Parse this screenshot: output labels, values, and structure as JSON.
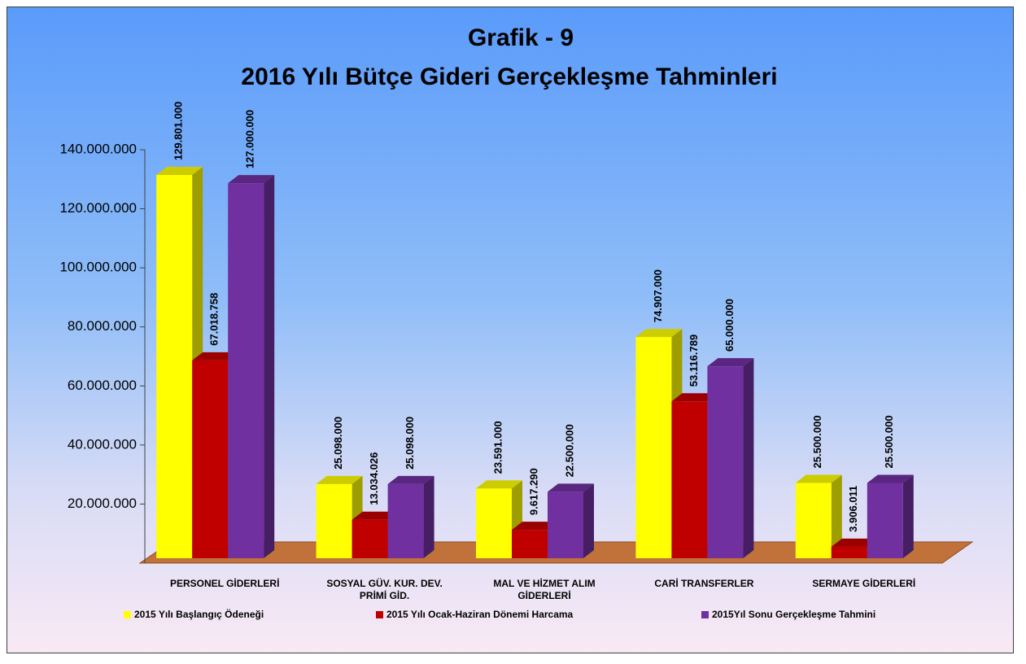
{
  "chart_data": {
    "type": "bar3d",
    "title": "Grafik - 9",
    "subtitle": "2016 Yılı Bütçe Gideri Gerçekleşme Tahminleri",
    "categories": [
      "PERSONEL GİDERLERİ",
      "SOSYAL GÜV. KUR. DEV. PRİMİ GİD.",
      "MAL VE HİZMET ALIM GİDERLERİ",
      "CARİ TRANSFERLER",
      "SERMAYE GİDERLERİ"
    ],
    "series": [
      {
        "name": "2015 Yılı Başlangıç Ödeneği",
        "color": "#ffff00",
        "values": [
          129801000,
          25098000,
          23591000,
          74907000,
          25500000
        ],
        "value_labels": [
          "129.801.000",
          "25.098.000",
          "23.591.000",
          "74.907.000",
          "25.500.000"
        ]
      },
      {
        "name": "2015 Yılı Ocak-Haziran Dönemi Harcama",
        "color": "#c00000",
        "values": [
          67018758,
          13034026,
          9617290,
          53116789,
          3906011
        ],
        "value_labels": [
          "67.018.758",
          "13.034.026",
          "9.617.290",
          "53.116.789",
          "3.906.011"
        ]
      },
      {
        "name": "2015Yıl Sonu Gerçekleşme Tahmini",
        "color": "#7030a0",
        "values": [
          127000000,
          25098000,
          22500000,
          65000000,
          25500000
        ],
        "value_labels": [
          "127.000.000",
          "25.098.000",
          "22.500.000",
          "65.000.000",
          "25.500.000"
        ]
      }
    ],
    "ylim": [
      0,
      140000000
    ],
    "yticks": [
      {
        "value": 20000000,
        "label": "20.000.000"
      },
      {
        "value": 40000000,
        "label": "40.000.000"
      },
      {
        "value": 60000000,
        "label": "60.000.000"
      },
      {
        "value": 80000000,
        "label": "80.000.000"
      },
      {
        "value": 100000000,
        "label": "100.000.000"
      },
      {
        "value": 120000000,
        "label": "120.000.000"
      },
      {
        "value": 140000000,
        "label": "140.000.000"
      }
    ],
    "grid": false
  }
}
